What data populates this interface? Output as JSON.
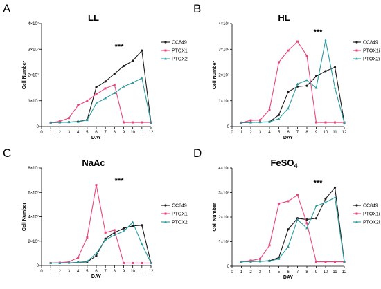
{
  "figure": {
    "colors": {
      "CC849": "#1a1a1a",
      "PTOX1i": "#e8457c",
      "PTOX2i": "#2a9a9e"
    }
  },
  "chart_data": [
    {
      "type": "line",
      "panel_label": "A",
      "title": "LL",
      "xlabel": "DAY",
      "ylabel": "Cell Number",
      "x": [
        1,
        2,
        3,
        4,
        5,
        6,
        7,
        8,
        9,
        10,
        11,
        12
      ],
      "xlim": [
        0,
        12
      ],
      "xticks": [
        "0",
        "1",
        "2",
        "3",
        "4",
        "5",
        "6",
        "7",
        "8",
        "9",
        "10",
        "11",
        "12"
      ],
      "ylim": [
        0,
        40000000
      ],
      "yticks": [
        {
          "value": 0,
          "label": "0"
        },
        {
          "value": 10000000,
          "label": "1×10⁷"
        },
        {
          "value": 20000000,
          "label": "2×10⁷"
        },
        {
          "value": 30000000,
          "label": "3×10⁷"
        },
        {
          "value": 40000000,
          "label": "4×10⁷"
        }
      ],
      "annotation": "***",
      "legend_position": "right",
      "series": [
        {
          "name": "CC849",
          "values": [
            1500000,
            1600000,
            1700000,
            1900000,
            2600000,
            15200000,
            17500000,
            20500000,
            23500000,
            25500000,
            29500000,
            1500000
          ]
        },
        {
          "name": "PTOX1i",
          "values": [
            1500000,
            2000000,
            3300000,
            8200000,
            10000000,
            12500000,
            14800000,
            16200000,
            1600000,
            1600000,
            1600000,
            1600000
          ]
        },
        {
          "name": "PTOX2i",
          "values": [
            1500000,
            1600000,
            1700000,
            1800000,
            2500000,
            9000000,
            11000000,
            13000000,
            15500000,
            17000000,
            18800000,
            1500000
          ]
        }
      ]
    },
    {
      "type": "line",
      "panel_label": "B",
      "title": "HL",
      "xlabel": "DAY",
      "ylabel": "Cell Number",
      "x": [
        1,
        2,
        3,
        4,
        5,
        6,
        7,
        8,
        9,
        10,
        11,
        12
      ],
      "xlim": [
        0,
        12
      ],
      "xticks": [
        "0",
        "1",
        "2",
        "3",
        "4",
        "5",
        "6",
        "7",
        "8",
        "9",
        "10",
        "11",
        "12"
      ],
      "ylim": [
        0,
        40000000
      ],
      "yticks": [
        {
          "value": 0,
          "label": "0"
        },
        {
          "value": 10000000,
          "label": "1×10⁷"
        },
        {
          "value": 20000000,
          "label": "2×10⁷"
        },
        {
          "value": 30000000,
          "label": "3×10⁷"
        },
        {
          "value": 40000000,
          "label": "4×10⁷"
        }
      ],
      "annotation": "***",
      "legend_position": "right",
      "series": [
        {
          "name": "CC849",
          "values": [
            1500000,
            1600000,
            1700000,
            1800000,
            4500000,
            13500000,
            15500000,
            15800000,
            19500000,
            21500000,
            23000000,
            1500000
          ]
        },
        {
          "name": "PTOX1i",
          "values": [
            1500000,
            2400000,
            2500000,
            6500000,
            25000000,
            29500000,
            33000000,
            27500000,
            1600000,
            1600000,
            1600000,
            1600000
          ]
        },
        {
          "name": "PTOX2i",
          "values": [
            1500000,
            1600000,
            1700000,
            1800000,
            3000000,
            7000000,
            16500000,
            18000000,
            15000000,
            33500000,
            15000000,
            1500000
          ]
        }
      ]
    },
    {
      "type": "line",
      "panel_label": "C",
      "title": "NaAc",
      "xlabel": "DAY",
      "ylabel": "Cell Number",
      "x": [
        1,
        2,
        3,
        4,
        5,
        6,
        7,
        8,
        9,
        10,
        11,
        12
      ],
      "xlim": [
        0,
        12
      ],
      "xticks": [
        "0",
        "1",
        "2",
        "3",
        "4",
        "5",
        "6",
        "7",
        "8",
        "9",
        "10",
        "11",
        "12"
      ],
      "ylim": [
        0,
        80000000
      ],
      "yticks": [
        {
          "value": 0,
          "label": "0"
        },
        {
          "value": 20000000,
          "label": "2×10⁷"
        },
        {
          "value": 40000000,
          "label": "4×10⁷"
        },
        {
          "value": 60000000,
          "label": "6×10⁷"
        },
        {
          "value": 80000000,
          "label": "8×10⁷"
        }
      ],
      "annotation": "***",
      "legend_position": "right",
      "series": [
        {
          "name": "CC849",
          "values": [
            2000000,
            2000000,
            2200000,
            2500000,
            3000000,
            8000000,
            22000000,
            27000000,
            30500000,
            32500000,
            33000000,
            2000000
          ]
        },
        {
          "name": "PTOX1i",
          "values": [
            2000000,
            2300000,
            3000000,
            6500000,
            23000000,
            66000000,
            27000000,
            29000000,
            2000000,
            2000000,
            2000000,
            2000000
          ]
        },
        {
          "name": "PTOX2i",
          "values": [
            2000000,
            2000000,
            2200000,
            2500000,
            3500000,
            10000000,
            21000000,
            25000000,
            28000000,
            35500000,
            17500000,
            2000000
          ]
        }
      ]
    },
    {
      "type": "line",
      "panel_label": "D",
      "title": "FeSO4",
      "xlabel": "DAY",
      "ylabel": "Cell Number",
      "x": [
        1,
        2,
        3,
        4,
        5,
        6,
        7,
        8,
        9,
        10,
        11,
        12
      ],
      "xlim": [
        0,
        12
      ],
      "xticks": [
        "0",
        "1",
        "2",
        "3",
        "4",
        "5",
        "6",
        "7",
        "8",
        "9",
        "10",
        "11",
        "12"
      ],
      "ylim": [
        0,
        40000000
      ],
      "yticks": [
        {
          "value": 0,
          "label": "0"
        },
        {
          "value": 10000000,
          "label": "1×10⁷"
        },
        {
          "value": 20000000,
          "label": "2×10⁷"
        },
        {
          "value": 30000000,
          "label": "3×10⁷"
        },
        {
          "value": 40000000,
          "label": "4×10⁷"
        }
      ],
      "annotation": "***",
      "legend_position": "right",
      "series": [
        {
          "name": "CC849",
          "values": [
            1800000,
            1900000,
            2000000,
            2200000,
            3500000,
            15000000,
            19500000,
            19000000,
            19500000,
            27500000,
            32000000,
            1800000
          ]
        },
        {
          "name": "PTOX1i",
          "values": [
            1800000,
            2300000,
            3000000,
            8500000,
            25500000,
            26500000,
            29000000,
            17500000,
            1800000,
            1800000,
            1800000,
            1800000
          ]
        },
        {
          "name": "PTOX2i",
          "values": [
            1800000,
            1900000,
            2000000,
            2100000,
            3000000,
            8000000,
            19000000,
            15500000,
            24500000,
            26000000,
            28000000,
            1800000
          ]
        }
      ]
    }
  ]
}
